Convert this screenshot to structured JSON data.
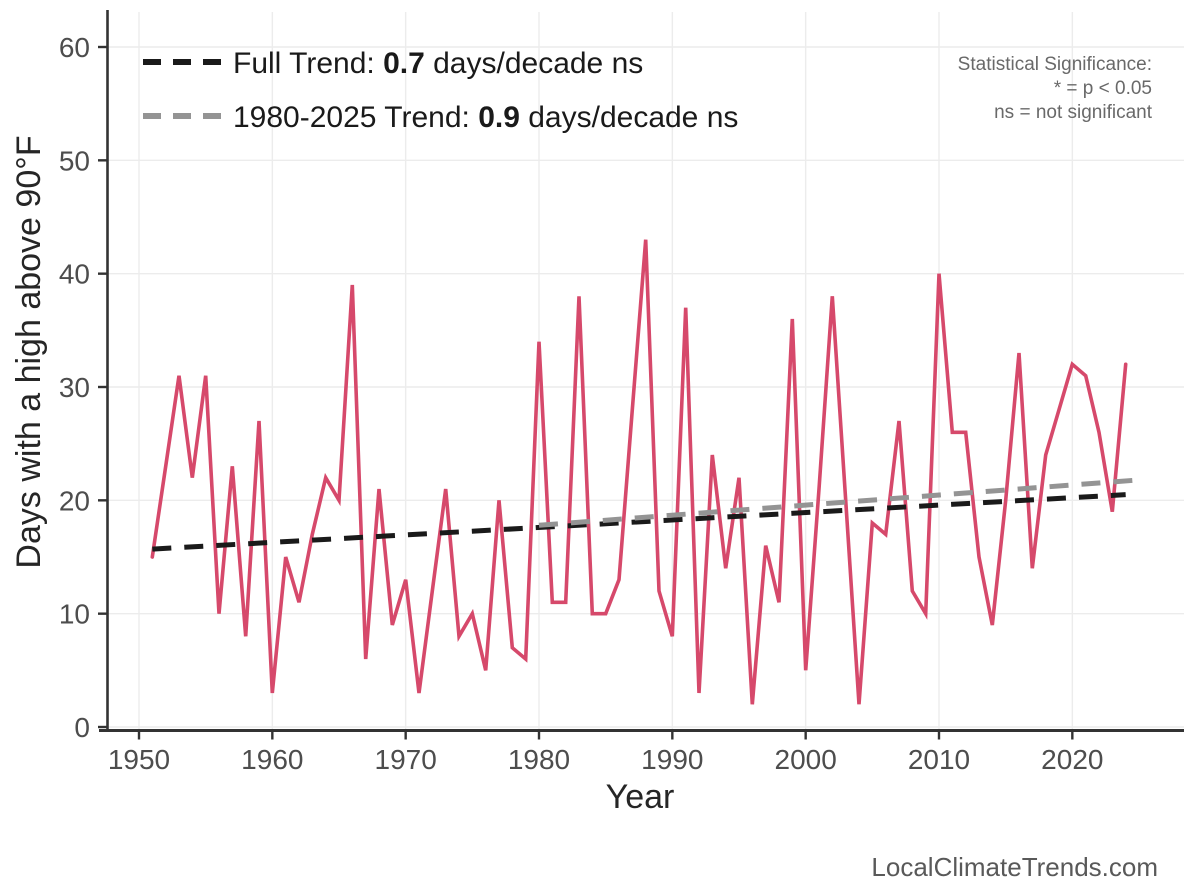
{
  "page": {
    "background": "#ffffff"
  },
  "legend": {
    "full_trend": {
      "prefix": "Full Trend: ",
      "value": "0.7",
      "suffix": " days/decade ns",
      "color": "#1a1a1a"
    },
    "recent_trend": {
      "prefix": "1980-2025 Trend: ",
      "value": "0.9",
      "suffix": " days/decade ns",
      "color": "#949494"
    }
  },
  "significance_note": {
    "line1": "Statistical Significance:",
    "line2": "* = p < 0.05",
    "line3": "ns = not significant",
    "color": "#696969"
  },
  "watermark": {
    "text": "LocalClimateTrends.com",
    "color": "#595959"
  },
  "chart_data": {
    "type": "line",
    "title": "",
    "xlabel": "Year",
    "ylabel": "Days with a high above 90°F",
    "x_ticks": [
      1950,
      1960,
      1970,
      1980,
      1990,
      2000,
      2010,
      2020
    ],
    "y_ticks": [
      0,
      10,
      20,
      30,
      40,
      50,
      60
    ],
    "xlim": [
      1948,
      2028
    ],
    "ylim": [
      0,
      62
    ],
    "grid": true,
    "grid_color": "#ececec",
    "axis_color": "#333333",
    "legend_position": "top-left",
    "series": [
      {
        "name": "annual-days-above-90F",
        "type": "line",
        "color": "#d6496b",
        "x": [
          1951,
          1952,
          1953,
          1954,
          1955,
          1956,
          1957,
          1958,
          1959,
          1960,
          1961,
          1962,
          1963,
          1964,
          1965,
          1966,
          1967,
          1968,
          1969,
          1970,
          1971,
          1972,
          1973,
          1974,
          1975,
          1976,
          1977,
          1978,
          1979,
          1980,
          1981,
          1982,
          1983,
          1984,
          1985,
          1986,
          1987,
          1988,
          1989,
          1990,
          1991,
          1992,
          1993,
          1994,
          1995,
          1996,
          1997,
          1998,
          1999,
          2000,
          2001,
          2002,
          2003,
          2004,
          2005,
          2006,
          2007,
          2008,
          2009,
          2010,
          2011,
          2012,
          2013,
          2014,
          2015,
          2016,
          2017,
          2018,
          2019,
          2020,
          2021,
          2022,
          2023,
          2024
        ],
        "values": [
          15,
          23,
          31,
          22,
          31,
          10,
          23,
          8,
          27,
          3,
          15,
          11,
          17,
          22,
          20,
          39,
          6,
          21,
          9,
          13,
          3,
          12,
          21,
          8,
          10,
          5,
          20,
          7,
          6,
          34,
          11,
          11,
          38,
          10,
          10,
          13,
          28,
          43,
          12,
          8,
          37,
          3,
          24,
          14,
          22,
          2,
          16,
          11,
          36,
          5,
          21,
          38,
          20,
          2,
          18,
          17,
          27,
          12,
          10,
          40,
          26,
          26,
          15,
          9,
          20,
          33,
          14,
          24,
          28,
          32,
          31,
          26,
          19,
          32
        ]
      },
      {
        "name": "full-trend",
        "type": "dashed-line",
        "color": "#1a1a1a",
        "slope_per_decade": 0.7,
        "significance": "ns",
        "x": [
          1951,
          2024
        ],
        "values": [
          15.7,
          20.5
        ]
      },
      {
        "name": "1980-2025-trend",
        "type": "dashed-line",
        "color": "#949494",
        "slope_per_decade": 0.9,
        "significance": "ns",
        "x": [
          1980,
          2025
        ],
        "values": [
          17.8,
          21.8
        ]
      }
    ]
  }
}
